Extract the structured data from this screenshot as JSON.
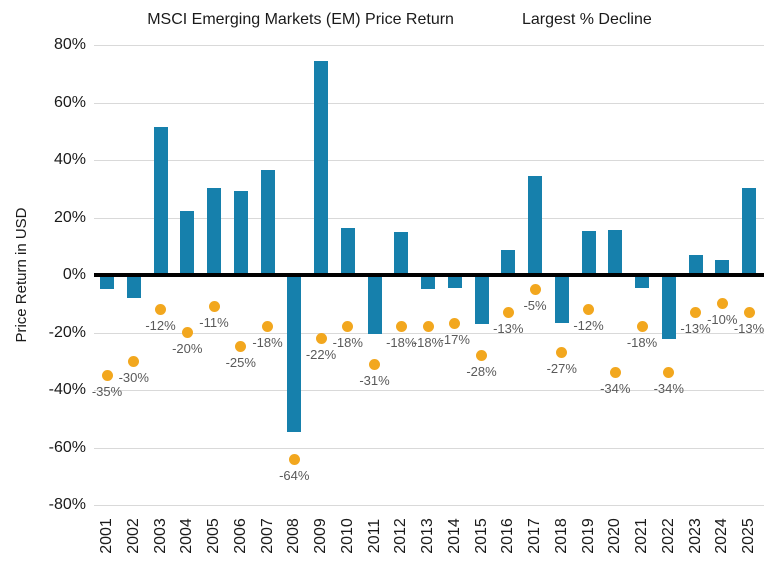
{
  "palette": {
    "bar_blue": "#1680AC",
    "dot_orange": "#F2A71E",
    "axis_text": "#1A1A1A",
    "data_label_text": "#595959",
    "gridline": "#D9D9D9",
    "zero_line": "#000000",
    "background": "#FFFFFF"
  },
  "chart_data": {
    "type": "bar",
    "title": "",
    "ylabel": "Price Return in USD",
    "xlabel": "",
    "ylim": [
      -80,
      80
    ],
    "grid": true,
    "legend_position": "top-center",
    "categories": [
      "2001",
      "2002",
      "2003",
      "2004",
      "2005",
      "2006",
      "2007",
      "2008",
      "2009",
      "2010",
      "2011",
      "2012",
      "2013",
      "2014",
      "2015",
      "2016",
      "2017",
      "2018",
      "2019",
      "2020",
      "2021",
      "2022",
      "2023",
      "2024",
      "2025"
    ],
    "yticks": [
      {
        "value": 80,
        "label": "80%"
      },
      {
        "value": 60,
        "label": "60%"
      },
      {
        "value": 40,
        "label": "40%"
      },
      {
        "value": 20,
        "label": "20%"
      },
      {
        "value": 0,
        "label": "0%"
      },
      {
        "value": -20,
        "label": "-20%"
      },
      {
        "value": -40,
        "label": "-40%"
      },
      {
        "value": -60,
        "label": "-60%"
      },
      {
        "value": -80,
        "label": "-80%"
      }
    ],
    "series": [
      {
        "name": "MSCI Emerging Markets (EM) Price Return",
        "type": "bar",
        "color": "#1680AC",
        "values": [
          -4.9,
          -8,
          51.6,
          22.4,
          30.3,
          29.2,
          36.5,
          -54.5,
          74.5,
          16.4,
          -20.4,
          15.1,
          -5,
          -4.6,
          -17.2,
          8.6,
          34.3,
          -16.6,
          15.4,
          15.8,
          -4.6,
          -22.4,
          7,
          5.1,
          30.3
        ]
      },
      {
        "name": "Largest % Decline",
        "type": "scatter",
        "color": "#F2A71E",
        "values": [
          -35,
          -30,
          -12,
          -20,
          -11,
          -25,
          -18,
          -64,
          -22,
          -18,
          -31,
          -18,
          -18,
          -17,
          -28,
          -13,
          -5,
          -27,
          -12,
          -34,
          -18,
          -34,
          -13,
          -10,
          -13
        ],
        "point_labels": [
          "-35%",
          "-30%",
          "-12%",
          "-20%",
          "-11%",
          "-25%",
          "-18%",
          "-64%",
          "-22%",
          "-18%",
          "-31%",
          "-18%",
          "-18%",
          "-17%",
          "-28%",
          "-13%",
          "-5%",
          "-27%",
          "-12%",
          "-34%",
          "-18%",
          "-34%",
          "-13%",
          "-10%",
          "-13%"
        ]
      }
    ]
  }
}
